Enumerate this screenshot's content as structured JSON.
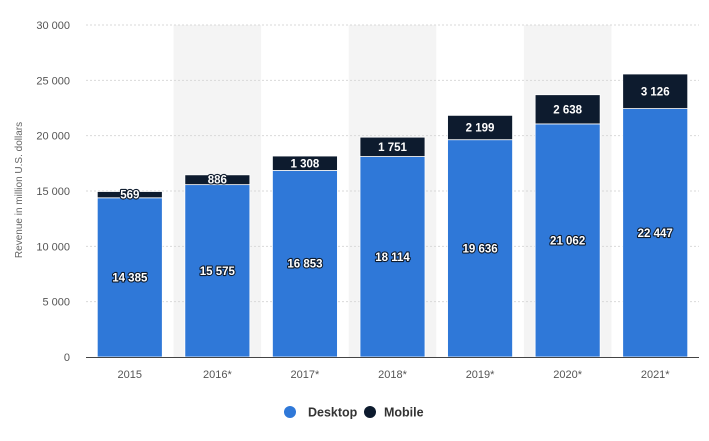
{
  "chart_data": {
    "type": "bar",
    "stacked": true,
    "categories": [
      "2015",
      "2016*",
      "2017*",
      "2018*",
      "2019*",
      "2020*",
      "2021*"
    ],
    "series": [
      {
        "name": "Desktop",
        "color": "#2f78d8",
        "values": [
          14385,
          15575,
          16853,
          18114,
          19636,
          21062,
          22447
        ]
      },
      {
        "name": "Mobile",
        "color": "#0d1b2e",
        "values": [
          569,
          886,
          1308,
          1751,
          2199,
          2638,
          3126
        ]
      }
    ],
    "value_labels": {
      "Desktop": [
        "14 385",
        "15 575",
        "16 853",
        "18 114",
        "19 636",
        "21 062",
        "22 447"
      ],
      "Mobile": [
        "569",
        "886",
        "1 308",
        "1 751",
        "2 199",
        "2 638",
        "3 126"
      ]
    },
    "title": "",
    "xlabel": "",
    "ylabel": "Revenue in million U.S. dollars",
    "ylim": [
      0,
      30000
    ],
    "yticks": [
      0,
      5000,
      10000,
      15000,
      20000,
      25000,
      30000
    ],
    "ytick_labels": [
      "0",
      "5 000",
      "10 000",
      "15 000",
      "20 000",
      "25 000",
      "30 000"
    ],
    "grid": true,
    "alternating_column_shading": true,
    "legend_position": "bottom-center"
  }
}
